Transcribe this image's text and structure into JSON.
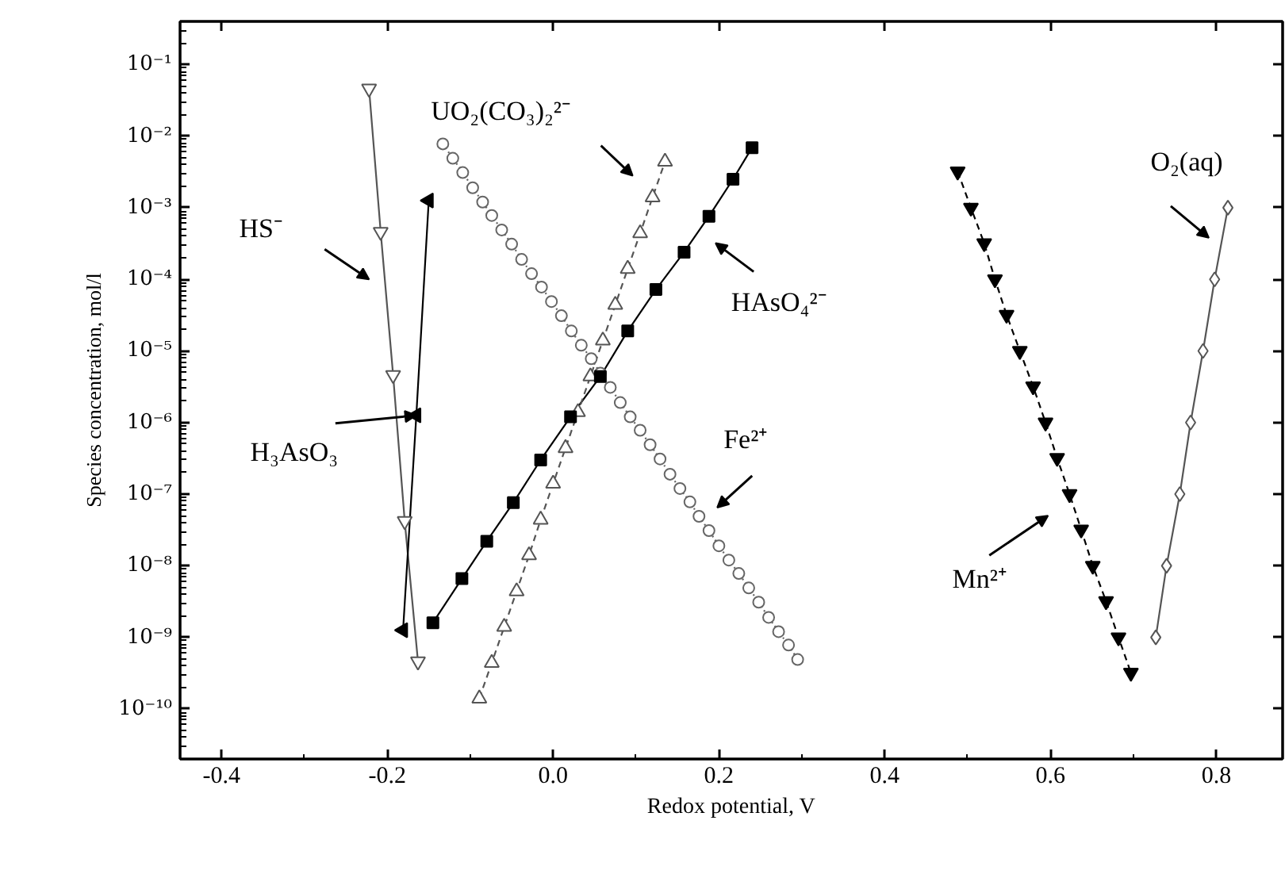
{
  "chart_data": {
    "type": "line",
    "xlabel": "Redox potential, V",
    "ylabel": "Species concentration, mol/l",
    "log": "y",
    "grid": false,
    "xlim": [
      -0.45,
      0.88
    ],
    "ylim": [
      2e-11,
      0.4
    ],
    "xticks": [
      -0.4,
      -0.2,
      {
        "value": 0,
        "label": "0.0"
      },
      0.2,
      0.4,
      0.6,
      0.8
    ],
    "yticks": [
      {
        "value": 1e-10,
        "label": "10⁻¹⁰"
      },
      {
        "value": 1e-09,
        "label": "10⁻⁹"
      },
      {
        "value": 1e-08,
        "label": "10⁻⁸"
      },
      {
        "value": 1e-07,
        "label": "10⁻⁷"
      },
      {
        "value": 1e-06,
        "label": "10⁻⁶"
      },
      {
        "value": 1e-05,
        "label": "10⁻⁵"
      },
      {
        "value": 0.0001,
        "label": "10⁻⁴"
      },
      {
        "value": 0.001,
        "label": "10⁻³"
      },
      {
        "value": 0.01,
        "label": "10⁻²"
      },
      {
        "value": 0.1,
        "label": "10⁻¹"
      }
    ],
    "series": [
      {
        "color": "#555555",
        "marker": "triangle_down_open",
        "line_style": "solid",
        "x": [
          -0.222,
          -0.208,
          -0.193,
          -0.179,
          -0.163
        ],
        "values": [
          0.046,
          0.00046,
          4.6e-06,
          4.2e-08,
          4.6e-10
        ]
      },
      {
        "color": "#000000",
        "marker": "triangle_left",
        "line_style": "solid",
        "x": [
          -0.15,
          -0.165,
          -0.181
        ],
        "values": [
          0.00126,
          1.26e-06,
          1.26e-09
        ]
      },
      {
        "color": "#000000",
        "marker": "square",
        "line_style": "solid",
        "x": [
          -0.145,
          -0.11,
          -0.08,
          -0.048,
          -0.015,
          0.021,
          0.057,
          0.09,
          0.124,
          0.158,
          0.188,
          0.217,
          0.24
        ],
        "values": [
          1.6e-09,
          6.6e-09,
          2.2e-08,
          7.6e-08,
          3e-07,
          1.2e-06,
          4.4e-06,
          1.9e-05,
          7.2e-05,
          0.00024,
          0.00076,
          0.0025,
          0.0069
        ]
      },
      {
        "color": "#555555",
        "marker": "triangle_open",
        "line_style": "dashed",
        "x": [
          -0.089,
          -0.074,
          -0.059,
          -0.044,
          -0.029,
          -0.015,
          0.0,
          0.015,
          0.03,
          0.045,
          0.06,
          0.075,
          0.09,
          0.105,
          0.12,
          0.135
        ],
        "values": [
          1.4e-10,
          4.4e-10,
          1.4e-09,
          4.4e-09,
          1.4e-08,
          4.4e-08,
          1.4e-07,
          4.4e-07,
          1.4e-06,
          4.4e-06,
          1.4e-05,
          4.4e-05,
          0.00014,
          0.00044,
          0.0014,
          0.0044
        ]
      },
      {
        "color": "#666666",
        "marker": "circle_open",
        "line_style": "dotted",
        "x": [
          -0.133,
          -0.121,
          -0.109,
          -0.097,
          -0.085,
          -0.074,
          -0.062,
          -0.05,
          -0.038,
          -0.026,
          -0.014,
          -0.002,
          0.01,
          0.022,
          0.034,
          0.046,
          0.057,
          0.069,
          0.081,
          0.093,
          0.105,
          0.117,
          0.129,
          0.141,
          0.153,
          0.165,
          0.176,
          0.188,
          0.2,
          0.212,
          0.224,
          0.236,
          0.248,
          0.26,
          0.272,
          0.284,
          0.295
        ],
        "values": [
          0.0078,
          0.0049,
          0.0031,
          0.0019,
          0.0012,
          0.00078,
          0.00049,
          0.00031,
          0.00019,
          0.00012,
          7.8e-05,
          4.9e-05,
          3.1e-05,
          1.9e-05,
          1.2e-05,
          7.8e-06,
          4.9e-06,
          3.1e-06,
          1.9e-06,
          1.2e-06,
          7.8e-07,
          4.9e-07,
          3.1e-07,
          1.9e-07,
          1.2e-07,
          7.8e-08,
          4.9e-08,
          3.1e-08,
          1.9e-08,
          1.2e-08,
          7.8e-09,
          4.9e-09,
          3.1e-09,
          1.9e-09,
          1.2e-09,
          7.8e-10,
          4.9e-10
        ]
      },
      {
        "color": "#000000",
        "marker": "triangle_down",
        "line_style": "dashed",
        "x": [
          0.488,
          0.504,
          0.52,
          0.533,
          0.547,
          0.563,
          0.579,
          0.594,
          0.608,
          0.623,
          0.637,
          0.651,
          0.667,
          0.682,
          0.697
        ],
        "values": [
          0.0032,
          0.001,
          0.00032,
          0.0001,
          3.2e-05,
          1e-05,
          3.2e-06,
          1e-06,
          3.2e-07,
          1e-07,
          3.2e-08,
          1e-08,
          3.2e-09,
          1e-09,
          3.2e-10
        ]
      },
      {
        "color": "#555555",
        "marker": "diamond_open",
        "line_style": "solid",
        "x": [
          0.814,
          0.798,
          0.784,
          0.769,
          0.756,
          0.74,
          0.727
        ],
        "values": [
          0.001,
          0.0001,
          1e-05,
          1e-06,
          1e-07,
          1e-08,
          1e-09
        ]
      }
    ],
    "annotations": [
      "HS⁻",
      "UO₂(CO₃)₂²⁻",
      {
        "text": "H₃AsO₃",
        "x": -0.165,
        "y": 1.26e-06
      },
      "HAsO₄²⁻",
      "Fe²⁺",
      "Mn²⁺",
      "O₂(aq)"
    ]
  }
}
